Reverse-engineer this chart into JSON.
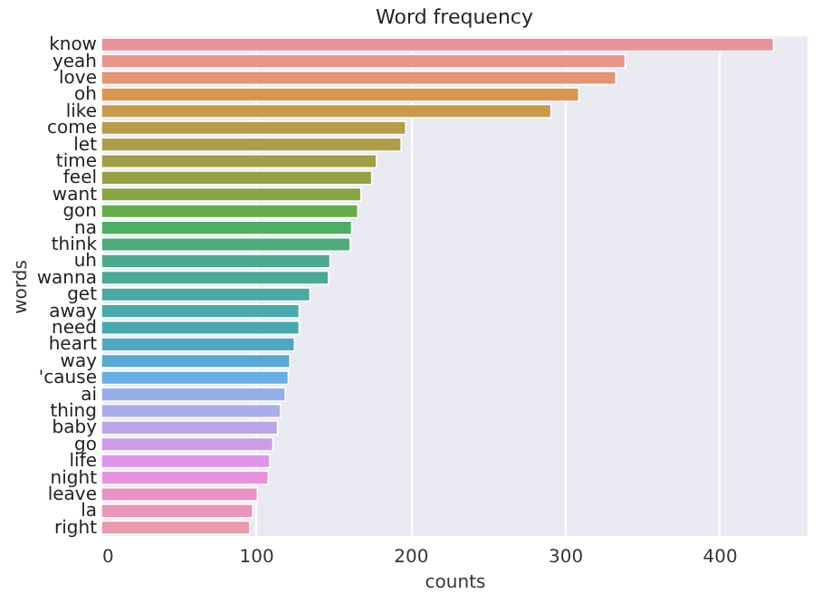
{
  "chart_data": {
    "type": "bar",
    "orientation": "horizontal",
    "title": "Word frequency",
    "xlabel": "counts",
    "ylabel": "words",
    "categories": [
      "know",
      "yeah",
      "love",
      "oh",
      "like",
      "come",
      "let",
      "time",
      "feel",
      "want",
      "gon",
      "na",
      "think",
      "uh",
      "wanna",
      "get",
      "away",
      "need",
      "heart",
      "way",
      "'cause",
      "ai",
      "thing",
      "baby",
      "go",
      "life",
      "night",
      "leave",
      "la",
      "right"
    ],
    "values": [
      435,
      339,
      333,
      309,
      291,
      197,
      194,
      178,
      175,
      168,
      166,
      162,
      161,
      148,
      147,
      135,
      128,
      128,
      125,
      122,
      121,
      119,
      116,
      114,
      111,
      109,
      108,
      101,
      98,
      96
    ],
    "colors": [
      "#e8939e",
      "#e8968c",
      "#e49475",
      "#d9954d",
      "#c99a4e",
      "#b89c4a",
      "#ad9d48",
      "#a29e46",
      "#99a145",
      "#8aa444",
      "#68ae48",
      "#4fae62",
      "#4dab7a",
      "#4caa8e",
      "#4aaa98",
      "#4aaaa3",
      "#4aaaad",
      "#4aa8b0",
      "#4fa9c4",
      "#55a9d4",
      "#67aee6",
      "#94aee8",
      "#a9abec",
      "#baa4ec",
      "#cc9ce6",
      "#de94e8",
      "#e991dc",
      "#e893c6",
      "#e895b8",
      "#e899ab"
    ],
    "xlim": [
      0,
      457
    ],
    "xticks": [
      0,
      100,
      200,
      300,
      400
    ],
    "grid": "x"
  }
}
